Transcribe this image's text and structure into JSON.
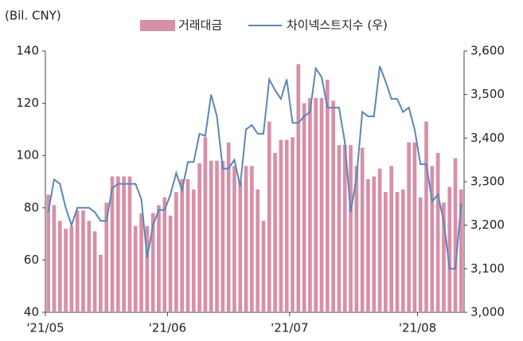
{
  "chart_data": {
    "type": "bar_line",
    "y_label": "(Bil. CNY)",
    "categories": [
      "'21/05",
      null,
      null,
      null,
      null,
      null,
      null,
      null,
      null,
      null,
      null,
      null,
      null,
      null,
      null,
      null,
      null,
      null,
      null,
      null,
      null,
      "'21/06",
      null,
      null,
      null,
      null,
      null,
      null,
      null,
      null,
      null,
      null,
      null,
      null,
      null,
      null,
      null,
      null,
      null,
      null,
      null,
      null,
      "'21/07",
      null,
      null,
      null,
      null,
      null,
      null,
      null,
      null,
      null,
      null,
      null,
      null,
      null,
      null,
      null,
      null,
      null,
      null,
      null,
      null,
      null,
      "'21/08",
      null,
      null,
      null,
      null,
      null,
      null,
      null
    ],
    "series": [
      {
        "name": "거래대금",
        "type": "bar",
        "color": "#d88fa8",
        "values": [
          85,
          81,
          75,
          72,
          73,
          79,
          79,
          75,
          71,
          62,
          82,
          92,
          92,
          92,
          92,
          73,
          78,
          73,
          78,
          81,
          84,
          77,
          86,
          91,
          91,
          87,
          97,
          107,
          98,
          98,
          98,
          105,
          96,
          90,
          96,
          96,
          87,
          75,
          113,
          101,
          106,
          106,
          107,
          135,
          120,
          122,
          122,
          122,
          129,
          121,
          104,
          104,
          104,
          96,
          103,
          91,
          92,
          95,
          86,
          96,
          86,
          87,
          105,
          105,
          84,
          113,
          96,
          101,
          82,
          88,
          99,
          87
        ]
      },
      {
        "name": "차이넥스트지수 (우)",
        "type": "line",
        "axis": "y2",
        "color": "#5b87b5",
        "values": [
          3230,
          3305,
          3295,
          3240,
          3200,
          3240,
          3240,
          3240,
          3230,
          3210,
          3210,
          3285,
          3295,
          3295,
          3295,
          3295,
          3260,
          3125,
          3200,
          3235,
          3235,
          3270,
          3320,
          3280,
          3345,
          3345,
          3410,
          3405,
          3500,
          3450,
          3330,
          3330,
          3350,
          3290,
          3420,
          3430,
          3410,
          3410,
          3535,
          3510,
          3490,
          3535,
          3435,
          3435,
          3450,
          3460,
          3560,
          3540,
          3470,
          3470,
          3470,
          3390,
          3230,
          3310,
          3460,
          3450,
          3450,
          3565,
          3530,
          3490,
          3490,
          3460,
          3470,
          3420,
          3340,
          3340,
          3255,
          3270,
          3210,
          3100,
          3100,
          3250
        ]
      }
    ],
    "ylim": [
      40,
      140
    ],
    "yticks": [
      40,
      60,
      80,
      100,
      120,
      140
    ],
    "y2lim": [
      3000,
      3600
    ],
    "y2ticks": [
      {
        "value": 3000,
        "label": "3,000"
      },
      {
        "value": 3100,
        "label": "3,100"
      },
      {
        "value": 3200,
        "label": "3,200"
      },
      {
        "value": 3300,
        "label": "3,300"
      },
      {
        "value": 3400,
        "label": "3,400"
      },
      {
        "value": 3500,
        "label": "3,500"
      },
      {
        "value": 3600,
        "label": "3,600"
      }
    ],
    "legend": "top"
  }
}
